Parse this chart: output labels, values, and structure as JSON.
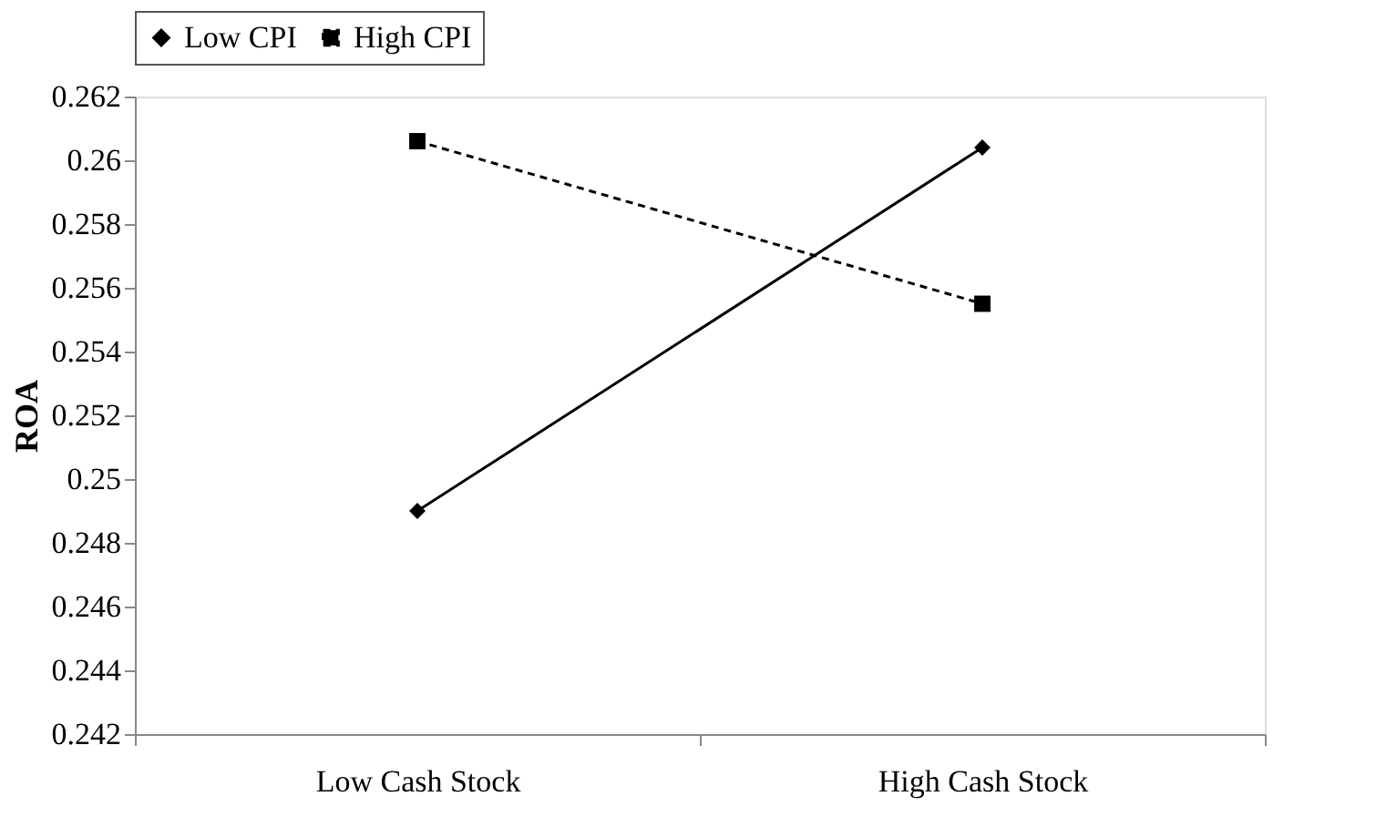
{
  "chart_data": {
    "type": "line",
    "ylabel": "ROA",
    "categories": [
      "Low Cash Stock",
      "High Cash Stock"
    ],
    "series": [
      {
        "name": "Low CPI",
        "color": "#000000",
        "values": [
          0.249,
          0.2604
        ],
        "marker": "diamond",
        "line_style": "solid"
      },
      {
        "name": "High CPI",
        "color": "#000000",
        "values": [
          0.2606,
          0.2555
        ],
        "marker": "square",
        "line_style": "dashed"
      }
    ],
    "ylim": [
      0.242,
      0.262
    ],
    "yticks": [
      0.242,
      0.244,
      0.246,
      0.248,
      0.25,
      0.252,
      0.254,
      0.256,
      0.258,
      0.26,
      0.262
    ],
    "grid": false,
    "legend": "top"
  }
}
